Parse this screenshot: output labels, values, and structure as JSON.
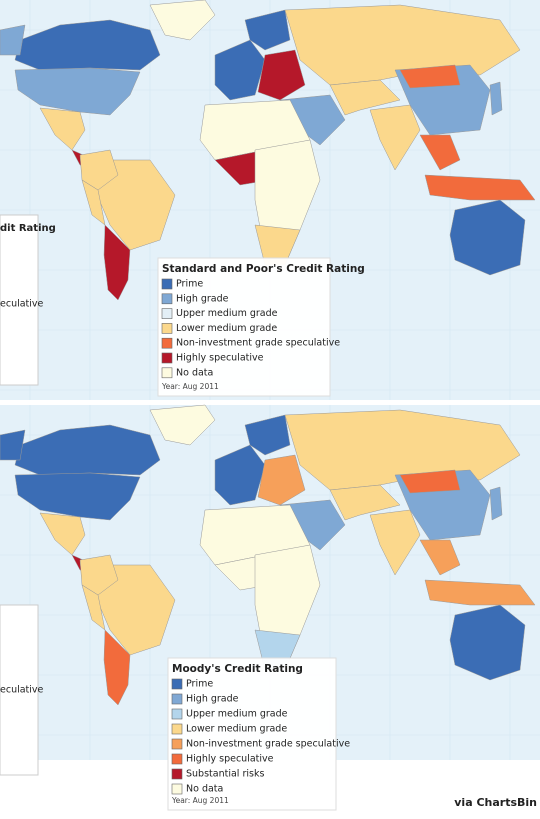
{
  "maps": [
    {
      "title": "Standard and Poor's Credit Rating",
      "legend": [
        {
          "label": "Prime",
          "color": "#3b6db5"
        },
        {
          "label": "High grade",
          "color": "#7fa8d4"
        },
        {
          "label": "Upper medium grade",
          "color": "#e3eff6"
        },
        {
          "label": "Lower medium grade",
          "color": "#fbd88c"
        },
        {
          "label": "Non-investment grade speculative",
          "color": "#f26b3c"
        },
        {
          "label": "Highly speculative",
          "color": "#b5182a"
        },
        {
          "label": "No data",
          "color": "#fdfbe0"
        }
      ],
      "note": "Year: Aug 2011",
      "side_legend": [
        "dit Rating",
        "eculative"
      ]
    },
    {
      "title": "Moody's Credit Rating",
      "legend": [
        {
          "label": "Prime",
          "color": "#3b6db5"
        },
        {
          "label": "High grade",
          "color": "#7fa8d4"
        },
        {
          "label": "Upper medium grade",
          "color": "#b3d5ec"
        },
        {
          "label": "Lower medium grade",
          "color": "#fbd88c"
        },
        {
          "label": "Non-investment grade speculative",
          "color": "#f6a05a"
        },
        {
          "label": "Highly speculative",
          "color": "#f26b3c"
        },
        {
          "label": "Substantial risks",
          "color": "#b5182a"
        },
        {
          "label": "No data",
          "color": "#fdfbe0"
        }
      ],
      "note": "Year: Aug 2011",
      "side_legend": [
        "eculative"
      ]
    }
  ],
  "credit": "via ChartsBin"
}
